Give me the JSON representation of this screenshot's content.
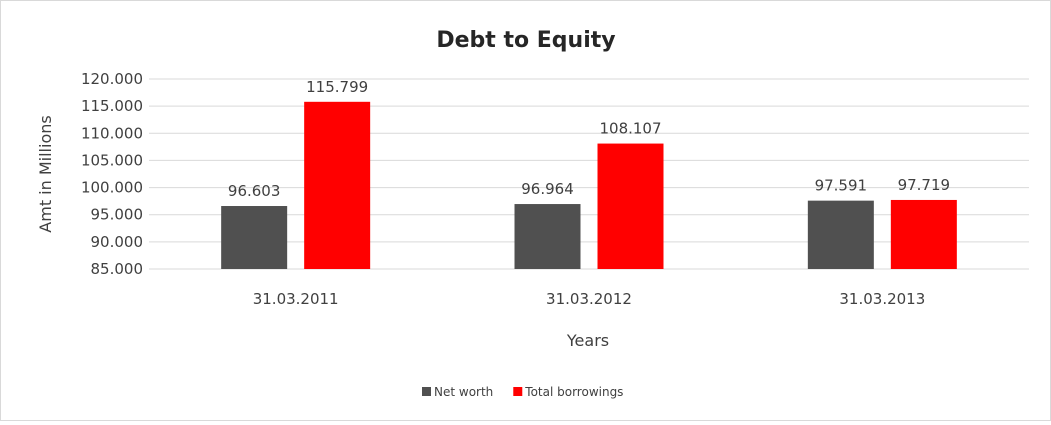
{
  "chart_data": {
    "type": "bar",
    "title": "Debt to Equity",
    "xlabel": "Years",
    "ylabel": "Amt in Millions",
    "categories": [
      "31.03.2011",
      "31.03.2012",
      "31.03.2013"
    ],
    "series": [
      {
        "name": "Net worth",
        "values": [
          96.603,
          96.964,
          97.591
        ],
        "color": "#505050",
        "labels": [
          "96.603",
          "96.964",
          "97.591"
        ]
      },
      {
        "name": "Total borrowings",
        "values": [
          115.799,
          108.107,
          97.719
        ],
        "color": "#ff0000",
        "labels": [
          "115.799",
          "108.107",
          "97.719"
        ]
      }
    ],
    "ylim": [
      85,
      120
    ],
    "yticks": [
      85,
      90,
      95,
      100,
      105,
      110,
      115,
      120
    ],
    "ytick_labels": [
      "85.000",
      "90.000",
      "95.000",
      "100.000",
      "105.000",
      "110.000",
      "115.000",
      "120.000"
    ],
    "grid": true,
    "gridline_color": "#d9d9d9",
    "legend_position": "bottom"
  }
}
